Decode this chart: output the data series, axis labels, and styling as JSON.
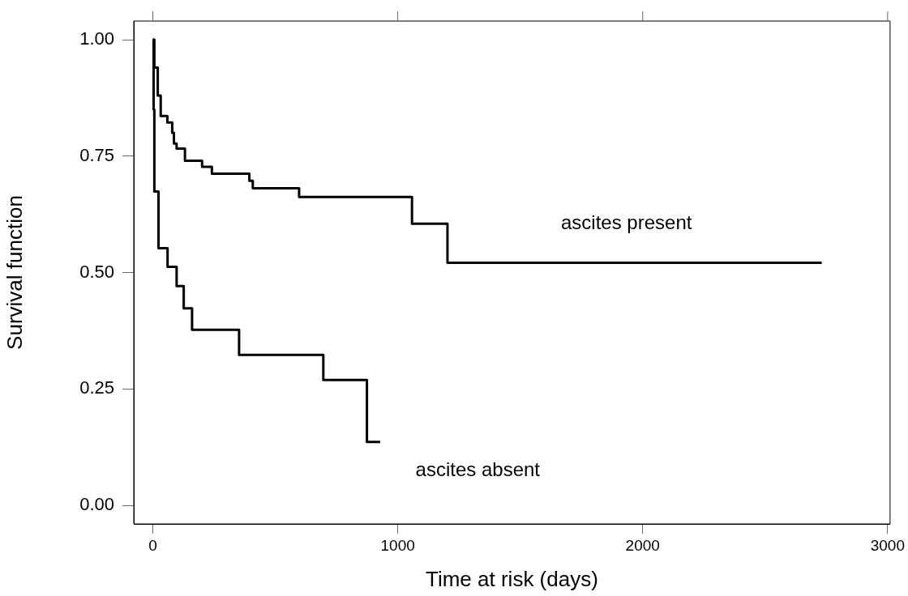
{
  "chart_data": {
    "type": "step",
    "xlabel": "Time at risk (days)",
    "ylabel": "Survival function",
    "xlim": [
      -78,
      3010
    ],
    "xticks": [
      0,
      1000,
      2000,
      3000
    ],
    "ylim": [
      -0.04,
      1.04
    ],
    "yticks": [
      {
        "value": 0,
        "label": "0.00"
      },
      {
        "value": 0.25,
        "label": "0.25"
      },
      {
        "value": 0.5,
        "label": "0.50"
      },
      {
        "value": 0.75,
        "label": "0.75"
      },
      {
        "value": 1,
        "label": "1.00"
      }
    ],
    "grid": false,
    "legend": false,
    "line_style": "solid",
    "marker": "none",
    "series": [
      {
        "name": "ascites present",
        "color": "#000000",
        "x": [
          0,
          6,
          20,
          32,
          59,
          79,
          86,
          97,
          131,
          201,
          241,
          394,
          408,
          597,
          1058,
          1203,
          2731
        ],
        "values": [
          1.0,
          0.94,
          0.88,
          0.836,
          0.822,
          0.8,
          0.777,
          0.766,
          0.74,
          0.727,
          0.712,
          0.697,
          0.681,
          0.662,
          0.605,
          0.521,
          0.521
        ]
      },
      {
        "name": "ascites absent",
        "color": "#000000",
        "x": [
          0,
          3,
          6,
          23,
          60,
          97,
          126,
          160,
          352,
          696,
          874,
          928
        ],
        "values": [
          1.0,
          0.85,
          0.674,
          0.552,
          0.512,
          0.471,
          0.423,
          0.377,
          0.323,
          0.269,
          0.136,
          0.136
        ]
      }
    ]
  }
}
